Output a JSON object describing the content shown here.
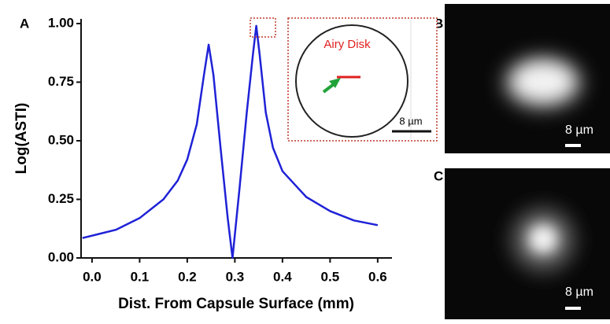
{
  "chart_data": {
    "type": "line",
    "xlabel": "Dist. From Capsule Surface (mm)",
    "ylabel": "Log(ASTI)",
    "x": [
      -0.02,
      0.05,
      0.1,
      0.15,
      0.18,
      0.2,
      0.22,
      0.235,
      0.245,
      0.255,
      0.27,
      0.285,
      0.295,
      0.31,
      0.325,
      0.338,
      0.345,
      0.352,
      0.365,
      0.38,
      0.4,
      0.45,
      0.5,
      0.55,
      0.6
    ],
    "values": [
      0.085,
      0.12,
      0.17,
      0.25,
      0.33,
      0.42,
      0.57,
      0.78,
      0.91,
      0.78,
      0.47,
      0.17,
      0,
      0.3,
      0.62,
      0.87,
      0.99,
      0.87,
      0.62,
      0.47,
      0.37,
      0.26,
      0.2,
      0.16,
      0.14
    ],
    "color": "#1f22d6",
    "xlim": [
      -0.023,
      0.63
    ],
    "ylim": [
      0,
      1.02
    ],
    "xticks": [
      {
        "value": 0,
        "label": "0.0"
      },
      0.1,
      0.2,
      0.3,
      0.4,
      0.5,
      0.6
    ],
    "yticks": [
      {
        "value": 0,
        "label": "0.00"
      },
      0.25,
      {
        "value": 0.5,
        "label": "0.50"
      },
      0.75,
      {
        "value": 1,
        "label": "1.00"
      }
    ],
    "panel_labels": [
      "A",
      "B",
      "C"
    ],
    "inset_label": "Airy Disk",
    "scale_labels": [
      "8 µm",
      "8 µm",
      "8 µm"
    ]
  }
}
